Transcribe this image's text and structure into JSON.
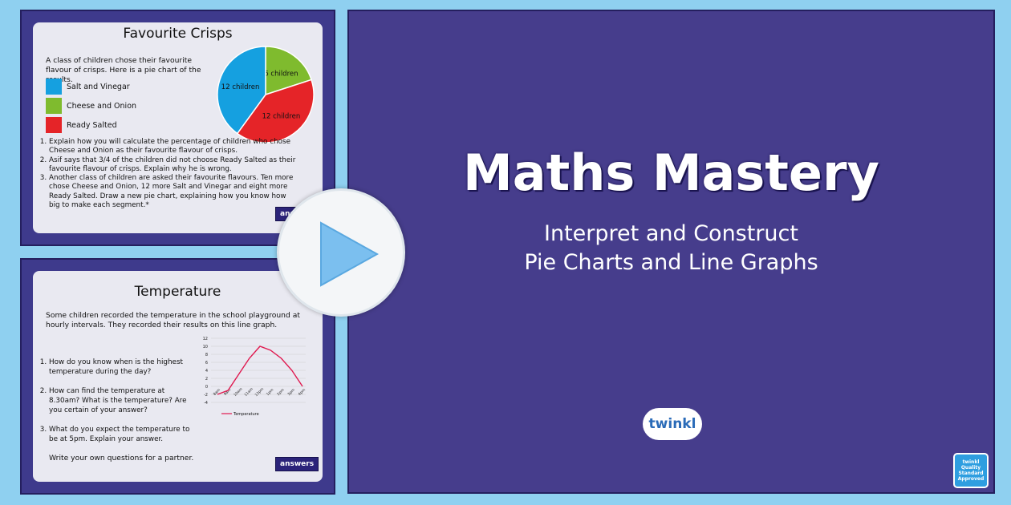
{
  "crisps": {
    "title": "Favourite Crisps",
    "intro": "A class of children chose their favourite flavour of crisps. Here is a pie chart of the results.",
    "legend": [
      {
        "label": "Salt and Vinegar",
        "color": "#15a0e0"
      },
      {
        "label": "Cheese and Onion",
        "color": "#7fbb2e"
      },
      {
        "label": "Ready Salted",
        "color": "#e52428"
      }
    ],
    "pie": [
      {
        "label": "6 children",
        "value": 6,
        "color": "#7fbb2e"
      },
      {
        "label": "12 children",
        "value": 12,
        "color": "#e52428"
      },
      {
        "label": "12 children",
        "value": 12,
        "color": "#15a0e0"
      }
    ],
    "questions": [
      "Explain how you will calculate the percentage of children who chose Cheese and Onion as their favourite flavour of crisps.",
      "Asif says that 3/4 of the children did not choose Ready Salted as their favourite flavour of crisps. Explain why he is wrong.",
      "Another class of children are asked their favourite flavours. Ten more chose Cheese and Onion, 12 more Salt and Vinegar and eight more Ready Salted. Draw a new pie chart, explaining how you know how big to make each segment.*"
    ],
    "answers": "answers"
  },
  "temperature": {
    "title": "Temperature",
    "intro": "Some children recorded the temperature in the school playground at hourly intervals. They recorded their results on this line graph.",
    "questions": [
      "How do you know when is the highest temperature during the day?",
      "How can find the temperature at 8.30am? What is the temperature? Are you certain of your answer?",
      "What do you expect the temperature to be at 5pm. Explain your answer."
    ],
    "footer": "Write your own questions for a partner.",
    "answers": "answers",
    "chart_data": {
      "type": "line",
      "categories": [
        "8am",
        "9am",
        "10am",
        "11am",
        "12pm",
        "1pm",
        "2pm",
        "3pm",
        "4pm"
      ],
      "series": [
        {
          "name": "Temperature",
          "values": [
            -2,
            -1,
            3,
            7,
            10,
            9,
            7,
            4,
            0
          ],
          "color": "#e0194f"
        }
      ],
      "ylim": [
        -4,
        12
      ],
      "yticks": [
        -4,
        -2,
        0,
        2,
        4,
        6,
        8,
        10,
        12
      ],
      "grid": true,
      "legend": "bottom"
    }
  },
  "main": {
    "title": "Maths Mastery",
    "subtitle1": "Interpret and Construct",
    "subtitle2": "Pie Charts and Line Graphs",
    "logo": "twinkl",
    "badge": "twinkl Quality Standard Approved"
  }
}
